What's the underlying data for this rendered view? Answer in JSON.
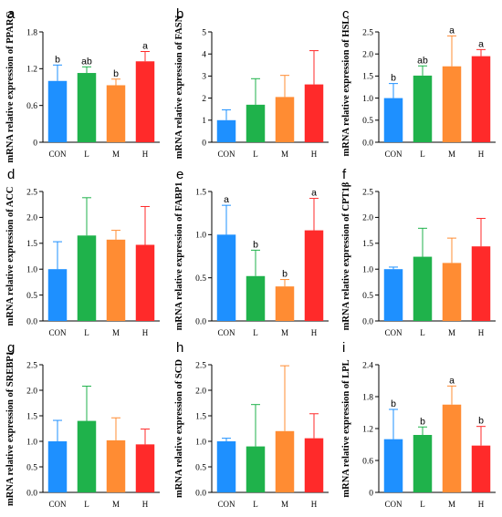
{
  "colors": {
    "CON": "#1e90ff",
    "L": "#1fb24b",
    "M": "#ff8c33",
    "H": "#ff2a2a"
  },
  "chart_data": [
    {
      "type": "bar",
      "panel": "a",
      "ylabel": "mRNA relative expression of PPARG",
      "categories": [
        "CON",
        "L",
        "M",
        "H"
      ],
      "values": [
        1.0,
        1.13,
        0.93,
        1.32
      ],
      "errors": [
        0.26,
        0.1,
        0.1,
        0.16
      ],
      "significance": [
        "b",
        "ab",
        "b",
        "a"
      ],
      "ylim": [
        0,
        1.8
      ],
      "yticks": [
        0,
        0.6,
        1.2,
        1.8
      ],
      "ytick_labels": [
        "0",
        "0.6",
        "1.2",
        "1.8"
      ]
    },
    {
      "type": "bar",
      "panel": "b",
      "ylabel": "mRNA relative expression of FASN",
      "categories": [
        "CON",
        "L",
        "M",
        "H"
      ],
      "values": [
        1.0,
        1.7,
        2.05,
        2.62
      ],
      "errors": [
        0.47,
        1.18,
        0.98,
        1.53
      ],
      "significance": [
        "",
        "",
        "",
        ""
      ],
      "ylim": [
        0,
        5
      ],
      "yticks": [
        0,
        1,
        2,
        3,
        4,
        5
      ],
      "ytick_labels": [
        "0",
        "1",
        "2",
        "3",
        "4",
        "5"
      ]
    },
    {
      "type": "bar",
      "panel": "c",
      "ylabel": "mRNA relative expression of HSL",
      "categories": [
        "CON",
        "L",
        "M",
        "H"
      ],
      "values": [
        1.0,
        1.51,
        1.72,
        1.95
      ],
      "errors": [
        0.33,
        0.22,
        0.69,
        0.15
      ],
      "significance": [
        "b",
        "ab",
        "a",
        "a"
      ],
      "ylim": [
        0,
        2.5
      ],
      "yticks": [
        0,
        0.5,
        1.0,
        1.5,
        2.0,
        2.5
      ],
      "ytick_labels": [
        "0.0",
        "0.5",
        "1.0",
        "1.5",
        "2.0",
        "2.5"
      ]
    },
    {
      "type": "bar",
      "panel": "d",
      "ylabel": "mRNA relative expression of ACC",
      "categories": [
        "CON",
        "L",
        "M",
        "H"
      ],
      "values": [
        1.0,
        1.65,
        1.57,
        1.47
      ],
      "errors": [
        0.53,
        0.73,
        0.18,
        0.74
      ],
      "significance": [
        "",
        "",
        "",
        ""
      ],
      "ylim": [
        0,
        2.5
      ],
      "yticks": [
        0,
        0.5,
        1.0,
        1.5,
        2.0,
        2.5
      ],
      "ytick_labels": [
        "0.0",
        "0.5",
        "1.0",
        "1.5",
        "2.0",
        "2.5"
      ]
    },
    {
      "type": "bar",
      "panel": "e",
      "ylabel": "mRNA relative expression of FABP1",
      "categories": [
        "CON",
        "L",
        "M",
        "H"
      ],
      "values": [
        1.0,
        0.52,
        0.4,
        1.05
      ],
      "errors": [
        0.34,
        0.3,
        0.08,
        0.37
      ],
      "significance": [
        "a",
        "b",
        "b",
        "a"
      ],
      "ylim": [
        0,
        1.5
      ],
      "yticks": [
        0,
        0.5,
        1.0,
        1.5
      ],
      "ytick_labels": [
        "0.0",
        "0.5",
        "1.0",
        "1.5"
      ]
    },
    {
      "type": "bar",
      "panel": "f",
      "ylabel": "mRNA relative expression of CPT1β",
      "categories": [
        "CON",
        "L",
        "M",
        "H"
      ],
      "values": [
        1.0,
        1.24,
        1.12,
        1.44
      ],
      "errors": [
        0.04,
        0.55,
        0.48,
        0.54
      ],
      "significance": [
        "",
        "",
        "",
        ""
      ],
      "ylim": [
        0,
        2.5
      ],
      "yticks": [
        0,
        0.5,
        1.0,
        1.5,
        2.0,
        2.5
      ],
      "ytick_labels": [
        "0.0",
        "0.5",
        "1.0",
        "1.5",
        "2.0",
        "2.5"
      ]
    },
    {
      "type": "bar",
      "panel": "g",
      "ylabel": "mRNA relative expression of SREBP1",
      "categories": [
        "CON",
        "L",
        "M",
        "H"
      ],
      "values": [
        1.0,
        1.4,
        1.02,
        0.94
      ],
      "errors": [
        0.41,
        0.68,
        0.44,
        0.3
      ],
      "significance": [
        "",
        "",
        "",
        ""
      ],
      "ylim": [
        0,
        2.5
      ],
      "yticks": [
        0,
        0.5,
        1.0,
        1.5,
        2.0,
        2.5
      ],
      "ytick_labels": [
        "0.0",
        "0.5",
        "1.0",
        "1.5",
        "2.0",
        "2.5"
      ]
    },
    {
      "type": "bar",
      "panel": "h",
      "ylabel": "mRNA relative expression of SCD",
      "categories": [
        "CON",
        "L",
        "M",
        "H"
      ],
      "values": [
        1.0,
        0.9,
        1.2,
        1.06
      ],
      "errors": [
        0.06,
        0.82,
        1.28,
        0.48
      ],
      "significance": [
        "",
        "",
        "",
        ""
      ],
      "ylim": [
        0,
        2.5
      ],
      "yticks": [
        0,
        0.5,
        1.0,
        1.5,
        2.0,
        2.5
      ],
      "ytick_labels": [
        "0.0",
        "0.5",
        "1.0",
        "1.5",
        "2.0",
        "2.5"
      ]
    },
    {
      "type": "bar",
      "panel": "i",
      "ylabel": "mRNA relative expression of LPL",
      "categories": [
        "CON",
        "L",
        "M",
        "H"
      ],
      "values": [
        1.0,
        1.08,
        1.65,
        0.88
      ],
      "errors": [
        0.56,
        0.15,
        0.35,
        0.36
      ],
      "significance": [
        "b",
        "b",
        "a",
        "b"
      ],
      "ylim": [
        0,
        2.4
      ],
      "yticks": [
        0,
        0.6,
        1.2,
        1.8,
        2.4
      ],
      "ytick_labels": [
        "0",
        "0.6",
        "1.2",
        "1.8",
        "2.4"
      ]
    }
  ]
}
